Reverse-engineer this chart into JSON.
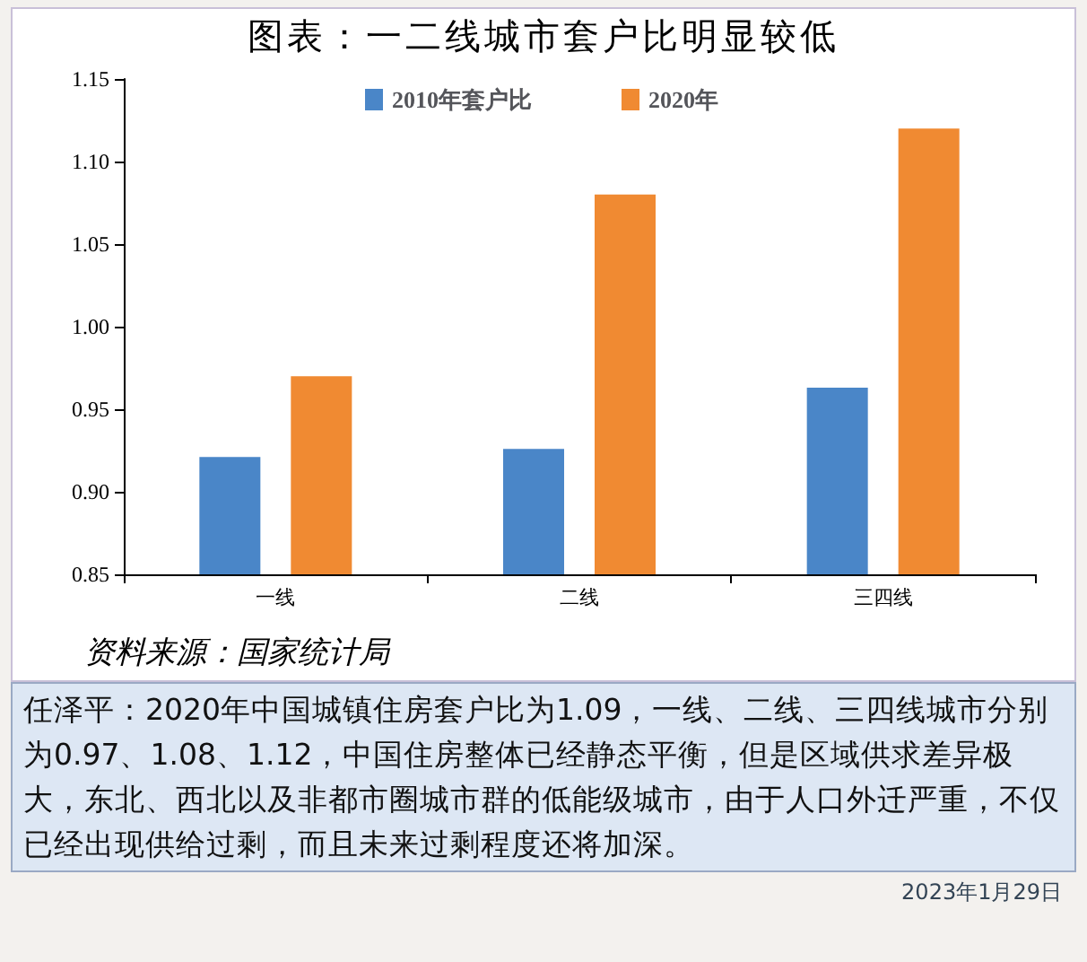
{
  "chart_data": {
    "type": "bar",
    "title": "图表：一二线城市套户比明显较低",
    "categories": [
      "一线",
      "二线",
      "三四线"
    ],
    "series": [
      {
        "name": "2010年套户比",
        "color": "#4a86c8",
        "values": [
          0.921,
          0.926,
          0.963
        ]
      },
      {
        "name": "2020年",
        "color": "#f08a32",
        "values": [
          0.97,
          1.08,
          1.12
        ]
      }
    ],
    "ylim": [
      0.85,
      1.15
    ],
    "yticks": [
      {
        "value": 0.85,
        "label": "0.85"
      },
      {
        "value": 0.9,
        "label": "0.90"
      },
      {
        "value": 0.95,
        "label": "0.95"
      },
      {
        "value": 1,
        "label": "1.00"
      },
      {
        "value": 1.05,
        "label": "1.05"
      },
      {
        "value": 1.1,
        "label": "1.10"
      },
      {
        "value": 1.15,
        "label": "1.15"
      }
    ],
    "grid": false,
    "legend": "top",
    "annotations": [
      "资料来源：国家统计局",
      "任泽平：2020年中国城镇住房套户比为1.09，一线、二线、三四线城市分别为0.97、1.08、1.12，中国住房整体已经静态平衡，但是区域供求差异极大，东北、西北以及非都市圈城市群的低能级城市，由于人口外迁严重，不仅已经出现供给过剩，而且未来过剩程度还将加深。",
      "2023年1月29日"
    ]
  }
}
